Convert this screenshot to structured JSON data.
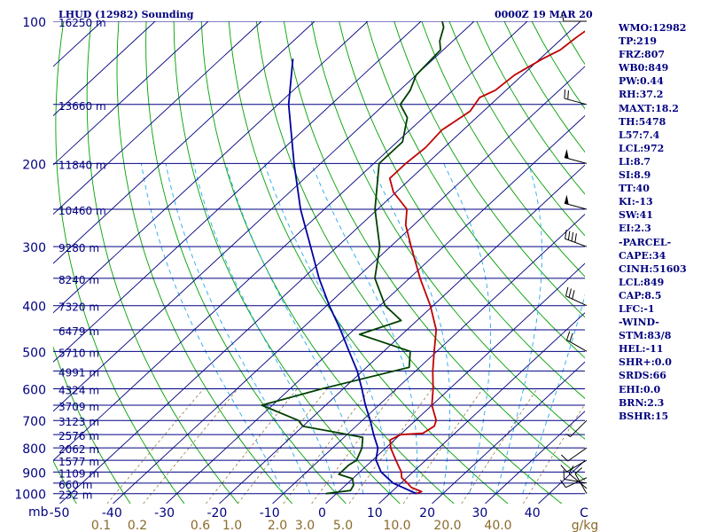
{
  "header": {
    "title_left": "LHUD (12982) Sounding",
    "title_right": "0000Z 19 MAR 20"
  },
  "chart_data": {
    "type": "line",
    "title": "LHUD (12982) Sounding",
    "time": "0000Z 19 MAR 20",
    "x_axis_unit": "mb",
    "temperature_ticks": [
      -50,
      -40,
      -30,
      -20,
      -10,
      0,
      10,
      20,
      30,
      40
    ],
    "temperature_tick_labels": [
      "-50",
      "-40",
      "-30",
      "-20",
      "-10",
      "0",
      "10",
      "20",
      "30",
      "40",
      "C"
    ],
    "pressure_ticks": [
      100,
      200,
      300,
      400,
      500,
      600,
      700,
      800,
      900,
      1000
    ],
    "mixing_ratio_labels": [
      "0.1",
      "0.2",
      "0.6",
      "1.0",
      "2.0",
      "3.0",
      "5.0",
      "10.0",
      "20.0",
      "40.0",
      "g/kg"
    ],
    "mixing_ratio_values": [
      0.1,
      0.2,
      0.6,
      1.0,
      2.0,
      3.0,
      5.0,
      10.0,
      20.0,
      40.0
    ],
    "height_labels": [
      {
        "p": 100,
        "label": "16250 m"
      },
      {
        "p": 150,
        "label": "13660 m"
      },
      {
        "p": 200,
        "label": "11840 m"
      },
      {
        "p": 250,
        "label": "10460 m"
      },
      {
        "p": 300,
        "label": "9280 m"
      },
      {
        "p": 350,
        "label": "8240 m"
      },
      {
        "p": 400,
        "label": "7320 m"
      },
      {
        "p": 450,
        "label": "6479 m"
      },
      {
        "p": 500,
        "label": "5710 m"
      },
      {
        "p": 550,
        "label": "4991 m"
      },
      {
        "p": 600,
        "label": "4324 m"
      },
      {
        "p": 650,
        "label": "3709 m"
      },
      {
        "p": 700,
        "label": "3123 m"
      },
      {
        "p": 750,
        "label": "2576 m"
      },
      {
        "p": 800,
        "label": "2062 m"
      },
      {
        "p": 850,
        "label": "1577 m"
      },
      {
        "p": 900,
        "label": "1109 m"
      },
      {
        "p": 950,
        "label": "660 m"
      },
      {
        "p": 1000,
        "label": "232 m"
      }
    ],
    "series": [
      {
        "key": "temperature",
        "color": "#c00000",
        "points": [
          {
            "p": 1000,
            "t": 15.0
          },
          {
            "p": 990,
            "t": 15.6
          },
          {
            "p": 970,
            "t": 12.8
          },
          {
            "p": 950,
            "t": 11.2
          },
          {
            "p": 925,
            "t": 9.0
          },
          {
            "p": 900,
            "t": 7.8
          },
          {
            "p": 850,
            "t": 4.4
          },
          {
            "p": 800,
            "t": 0.9
          },
          {
            "p": 770,
            "t": -0.8
          },
          {
            "p": 750,
            "t": 0.1
          },
          {
            "p": 745,
            "t": 4.0
          },
          {
            "p": 720,
            "t": 4.7
          },
          {
            "p": 700,
            "t": 3.9
          },
          {
            "p": 650,
            "t": 0.0
          },
          {
            "p": 600,
            "t": -3.1
          },
          {
            "p": 550,
            "t": -6.8
          },
          {
            "p": 500,
            "t": -10.5
          },
          {
            "p": 450,
            "t": -14.5
          },
          {
            "p": 400,
            "t": -20.5
          },
          {
            "p": 350,
            "t": -28.0
          },
          {
            "p": 300,
            "t": -36.1
          },
          {
            "p": 270,
            "t": -41.5
          },
          {
            "p": 250,
            "t": -44.5
          },
          {
            "p": 230,
            "t": -50.5
          },
          {
            "p": 215,
            "t": -54.0
          },
          {
            "p": 200,
            "t": -54.0
          },
          {
            "p": 185,
            "t": -53.5
          },
          {
            "p": 170,
            "t": -54.0
          },
          {
            "p": 155,
            "t": -52.5
          },
          {
            "p": 145,
            "t": -53.5
          },
          {
            "p": 140,
            "t": -52.0
          },
          {
            "p": 130,
            "t": -51.5
          },
          {
            "p": 120,
            "t": -49.5
          },
          {
            "p": 115,
            "t": -48.0
          },
          {
            "p": 108,
            "t": -47.5
          },
          {
            "p": 100,
            "t": -46.5
          }
        ]
      },
      {
        "key": "dewpoint",
        "color": "#004000",
        "points": [
          {
            "p": 1000,
            "t": -2.0
          },
          {
            "p": 985,
            "t": 2.0
          },
          {
            "p": 960,
            "t": 1.5
          },
          {
            "p": 930,
            "t": 0.0
          },
          {
            "p": 910,
            "t": -3.5
          },
          {
            "p": 890,
            "t": -3.5
          },
          {
            "p": 870,
            "t": -3.5
          },
          {
            "p": 850,
            "t": -3.0
          },
          {
            "p": 800,
            "t": -4.5
          },
          {
            "p": 760,
            "t": -6.5
          },
          {
            "p": 720,
            "t": -20.0
          },
          {
            "p": 700,
            "t": -22.0
          },
          {
            "p": 650,
            "t": -32.0
          },
          {
            "p": 600,
            "t": -24.0
          },
          {
            "p": 540,
            "t": -12.0
          },
          {
            "p": 500,
            "t": -15.0
          },
          {
            "p": 460,
            "t": -28.0
          },
          {
            "p": 430,
            "t": -23.0
          },
          {
            "p": 400,
            "t": -29.0
          },
          {
            "p": 350,
            "t": -36.5
          },
          {
            "p": 300,
            "t": -42.0
          },
          {
            "p": 250,
            "t": -50.5
          },
          {
            "p": 200,
            "t": -59.0
          },
          {
            "p": 180,
            "t": -59.0
          },
          {
            "p": 160,
            "t": -63.0
          },
          {
            "p": 150,
            "t": -67.0
          },
          {
            "p": 140,
            "t": -68.0
          },
          {
            "p": 130,
            "t": -70.0
          },
          {
            "p": 115,
            "t": -70.5
          },
          {
            "p": 110,
            "t": -72.5
          },
          {
            "p": 103,
            "t": -74.5
          },
          {
            "p": 100,
            "t": -76.0
          }
        ]
      },
      {
        "key": "parcel",
        "color": "#0000a0",
        "points": [
          {
            "p": 1000,
            "t": 15.0
          },
          {
            "p": 950,
            "t": 8.5
          },
          {
            "p": 900,
            "t": 4.0
          },
          {
            "p": 849,
            "t": 0.6
          },
          {
            "p": 800,
            "t": -1.5
          },
          {
            "p": 750,
            "t": -5.0
          },
          {
            "p": 700,
            "t": -8.5
          },
          {
            "p": 650,
            "t": -12.5
          },
          {
            "p": 600,
            "t": -16.5
          },
          {
            "p": 550,
            "t": -21.0
          },
          {
            "p": 500,
            "t": -26.5
          },
          {
            "p": 450,
            "t": -32.5
          },
          {
            "p": 400,
            "t": -39.5
          },
          {
            "p": 350,
            "t": -47.0
          },
          {
            "p": 300,
            "t": -55.0
          },
          {
            "p": 250,
            "t": -64.5
          },
          {
            "p": 200,
            "t": -75.0
          },
          {
            "p": 150,
            "t": -88.0
          },
          {
            "p": 120,
            "t": -96.5
          }
        ]
      }
    ],
    "wind_barbs": [
      {
        "p": 1000,
        "dir": 330,
        "spd": 10
      },
      {
        "p": 975,
        "dir": 310,
        "spd": 10
      },
      {
        "p": 950,
        "dir": 280,
        "spd": 10
      },
      {
        "p": 925,
        "dir": 245,
        "spd": 10
      },
      {
        "p": 850,
        "dir": 240,
        "spd": 10
      },
      {
        "p": 800,
        "dir": 235,
        "spd": 10
      },
      {
        "p": 700,
        "dir": 225,
        "spd": 5
      },
      {
        "p": 500,
        "dir": 300,
        "spd": 20
      },
      {
        "p": 400,
        "dir": 295,
        "spd": 30
      },
      {
        "p": 300,
        "dir": 290,
        "spd": 40
      },
      {
        "p": 250,
        "dir": 285,
        "spd": 50
      },
      {
        "p": 200,
        "dir": 285,
        "spd": 50
      },
      {
        "p": 150,
        "dir": 285,
        "spd": 20
      },
      {
        "p": 100,
        "dir": 270,
        "spd": 10
      }
    ]
  },
  "stats": [
    "WMO:12982",
    "TP:219",
    "FRZ:807",
    "WB0:849",
    "PW:0.44",
    "RH:37.2",
    "MAXT:18.2",
    "TH:5478",
    "L57:7.4",
    "LCL:972",
    "LI:8.7",
    "SI:8.9",
    "TT:40",
    "KI:-13",
    "SW:41",
    "EI:2.3",
    "-PARCEL-",
    "CAPE:34",
    "CINH:51603",
    "LCL:849",
    "CAP:8.5",
    "LFC:-1",
    "-WIND-",
    "STM:83/8",
    "HEL:-11",
    "SHR+:0.0",
    "SRDS:66",
    "EHI:0.0",
    "BRN:2.3",
    "BSHR:15"
  ],
  "colors": {
    "isobar": "#000080",
    "isotherm": "#000080",
    "dry_adiabat": "#00a000",
    "moist_adiabat": "#22aaee",
    "mixing_ratio": "#8a6a2a",
    "axis_text": "#000080",
    "mixing_label": "#8a6a2a"
  }
}
